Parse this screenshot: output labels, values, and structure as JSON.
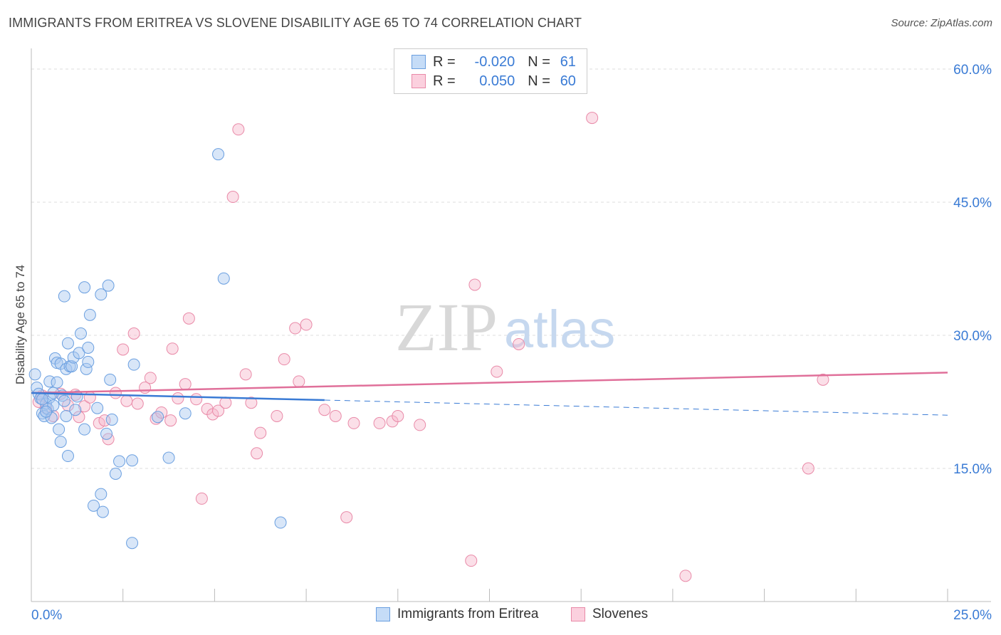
{
  "title": "IMMIGRANTS FROM ERITREA VS SLOVENE DISABILITY AGE 65 TO 74 CORRELATION CHART",
  "source": "Source: ZipAtlas.com",
  "watermark": {
    "zip": "ZIP",
    "atlas": "atlas"
  },
  "legend": {
    "rows": [
      {
        "r_label": "R =",
        "r_value": "-0.020",
        "n_label": "N =",
        "n_value": "61"
      },
      {
        "r_label": "R =",
        "r_value": "0.050",
        "n_label": "N =",
        "n_value": "60"
      }
    ]
  },
  "bottom_legend": [
    "Immigrants from Eritrea",
    "Slovenes"
  ],
  "colors": {
    "blue_fill": "#a8c8f0",
    "blue_stroke": "#6a9fe0",
    "blue_line": "#3a7bd5",
    "pink_fill": "#f6b8cc",
    "pink_stroke": "#e98aa8",
    "pink_line": "#e0709a",
    "tick_text": "#3a7bd5",
    "grid": "#dddddd"
  },
  "chart_data": {
    "type": "scatter",
    "title": "IMMIGRANTS FROM ERITREA VS SLOVENE DISABILITY AGE 65 TO 74 CORRELATION CHART",
    "xlabel": "",
    "ylabel": "Disability Age 65 to 74",
    "xlim": [
      0,
      25
    ],
    "ylim": [
      0,
      60
    ],
    "x_tick_labels": [
      "0.0%",
      "25.0%"
    ],
    "y_ticks": [
      15,
      30,
      45,
      60
    ],
    "y_tick_labels": [
      "15.0%",
      "30.0%",
      "45.0%",
      "60.0%"
    ],
    "grid": true,
    "legend_position": "top-center",
    "series": [
      {
        "name": "Immigrants from Eritrea",
        "r": -0.02,
        "n": 61,
        "trend": {
          "x": [
            0,
            8
          ],
          "y": [
            23.5,
            22.7
          ]
        },
        "trend_extension": {
          "x": [
            8,
            25
          ],
          "y": [
            22.7,
            21.0
          ]
        },
        "points": [
          [
            0.1,
            25.6
          ],
          [
            0.15,
            24.1
          ],
          [
            0.2,
            23.4
          ],
          [
            0.25,
            22.9
          ],
          [
            0.3,
            21.2
          ],
          [
            0.35,
            20.9
          ],
          [
            0.4,
            22.3
          ],
          [
            0.45,
            21.7
          ],
          [
            0.5,
            23.0
          ],
          [
            0.55,
            20.7
          ],
          [
            0.5,
            24.8
          ],
          [
            0.6,
            22.1
          ],
          [
            0.6,
            23.5
          ],
          [
            0.65,
            27.4
          ],
          [
            0.7,
            26.9
          ],
          [
            0.7,
            24.7
          ],
          [
            0.75,
            19.4
          ],
          [
            0.8,
            18.0
          ],
          [
            0.8,
            26.8
          ],
          [
            0.85,
            23.2
          ],
          [
            0.9,
            34.4
          ],
          [
            0.95,
            26.2
          ],
          [
            1.0,
            29.1
          ],
          [
            1.05,
            26.5
          ],
          [
            0.95,
            20.9
          ],
          [
            0.9,
            22.6
          ],
          [
            1.1,
            26.5
          ],
          [
            1.15,
            27.5
          ],
          [
            1.2,
            21.6
          ],
          [
            1.25,
            23.1
          ],
          [
            1.3,
            28.0
          ],
          [
            1.35,
            30.2
          ],
          [
            1.45,
            35.4
          ],
          [
            1.5,
            26.2
          ],
          [
            1.45,
            19.4
          ],
          [
            1.55,
            27.0
          ],
          [
            1.55,
            28.6
          ],
          [
            1.6,
            32.3
          ],
          [
            1.7,
            10.8
          ],
          [
            1.8,
            21.8
          ],
          [
            1.9,
            12.1
          ],
          [
            1.9,
            34.6
          ],
          [
            1.95,
            10.1
          ],
          [
            2.05,
            18.9
          ],
          [
            2.1,
            35.6
          ],
          [
            2.15,
            25.0
          ],
          [
            2.2,
            20.5
          ],
          [
            2.3,
            14.4
          ],
          [
            2.4,
            15.8
          ],
          [
            2.75,
            6.6
          ],
          [
            2.75,
            15.9
          ],
          [
            2.8,
            26.7
          ],
          [
            3.45,
            20.8
          ],
          [
            3.75,
            16.2
          ],
          [
            4.2,
            21.2
          ],
          [
            5.1,
            50.4
          ],
          [
            5.25,
            36.4
          ],
          [
            6.8,
            8.9
          ],
          [
            1.0,
            16.4
          ],
          [
            0.4,
            21.4
          ],
          [
            0.3,
            22.8
          ]
        ]
      },
      {
        "name": "Slovenes",
        "r": 0.05,
        "n": 60,
        "trend": {
          "x": [
            0,
            25
          ],
          "y": [
            23.5,
            25.8
          ]
        },
        "points": [
          [
            0.2,
            22.5
          ],
          [
            0.3,
            23.2
          ],
          [
            0.4,
            21.8
          ],
          [
            0.6,
            20.9
          ],
          [
            0.8,
            23.4
          ],
          [
            1.0,
            22.1
          ],
          [
            1.2,
            23.3
          ],
          [
            1.3,
            20.8
          ],
          [
            1.45,
            22.0
          ],
          [
            1.6,
            23.0
          ],
          [
            1.85,
            20.1
          ],
          [
            2.0,
            20.4
          ],
          [
            2.1,
            18.3
          ],
          [
            2.3,
            23.5
          ],
          [
            2.5,
            28.4
          ],
          [
            2.6,
            22.6
          ],
          [
            2.8,
            30.2
          ],
          [
            2.9,
            22.3
          ],
          [
            3.1,
            24.1
          ],
          [
            3.25,
            25.2
          ],
          [
            3.4,
            20.6
          ],
          [
            3.55,
            21.3
          ],
          [
            3.8,
            20.4
          ],
          [
            3.85,
            28.5
          ],
          [
            4.0,
            22.9
          ],
          [
            4.2,
            24.5
          ],
          [
            4.3,
            31.9
          ],
          [
            4.5,
            22.8
          ],
          [
            4.65,
            11.6
          ],
          [
            4.8,
            21.7
          ],
          [
            4.95,
            21.1
          ],
          [
            5.1,
            21.5
          ],
          [
            5.3,
            22.4
          ],
          [
            5.5,
            45.6
          ],
          [
            5.65,
            53.2
          ],
          [
            5.85,
            25.6
          ],
          [
            6.0,
            22.4
          ],
          [
            6.15,
            16.7
          ],
          [
            6.25,
            19.0
          ],
          [
            6.7,
            20.9
          ],
          [
            6.9,
            27.3
          ],
          [
            7.2,
            30.8
          ],
          [
            7.3,
            24.8
          ],
          [
            7.5,
            31.2
          ],
          [
            8.0,
            21.6
          ],
          [
            8.3,
            20.9
          ],
          [
            8.6,
            9.5
          ],
          [
            8.8,
            20.1
          ],
          [
            9.5,
            20.1
          ],
          [
            9.85,
            20.3
          ],
          [
            10.0,
            20.9
          ],
          [
            10.6,
            19.9
          ],
          [
            12.0,
            4.6
          ],
          [
            12.1,
            35.7
          ],
          [
            12.7,
            25.9
          ],
          [
            13.3,
            29.0
          ],
          [
            15.3,
            54.5
          ],
          [
            17.85,
            2.9
          ],
          [
            21.2,
            15.0
          ],
          [
            21.6,
            25.0
          ]
        ]
      }
    ]
  }
}
